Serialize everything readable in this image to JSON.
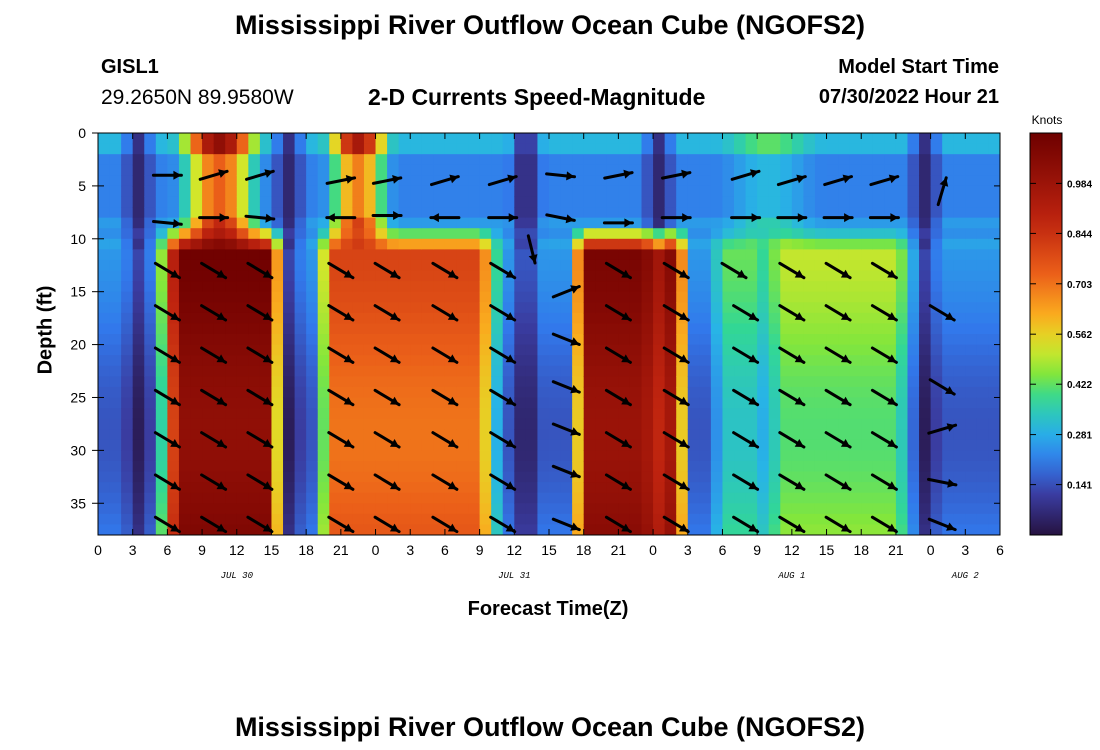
{
  "page": {
    "title": "Mississippi River Outflow Ocean Cube (NGOFS2)",
    "title_bottom": "Mississippi River Outflow Ocean Cube (NGOFS2)",
    "station": "GISL1",
    "coordinates": "29.2650N  89.9580W",
    "subtitle": "2-D Currents Speed-Magnitude",
    "model_start_label": "Model Start Time",
    "model_start_value": "07/30/2022 Hour 21"
  },
  "chart_data": {
    "type": "heatmap",
    "title": "2-D Currents Speed-Magnitude",
    "xlabel": "Forecast Time(Z)",
    "ylabel": "Depth (ft)",
    "xlim": [
      0,
      78
    ],
    "ylim": [
      0,
      38
    ],
    "y_inverted": true,
    "x_tick_hours": [
      0,
      3,
      6,
      9,
      12,
      15,
      18,
      21,
      24,
      27,
      30,
      33,
      36,
      39,
      42,
      45,
      48,
      51,
      54,
      57,
      60,
      63,
      66,
      69,
      72,
      75,
      78
    ],
    "x_tick_labels": [
      "0",
      "3",
      "6",
      "9",
      "12",
      "15",
      "18",
      "21",
      "0",
      "3",
      "6",
      "9",
      "12",
      "15",
      "18",
      "21",
      "0",
      "3",
      "6",
      "9",
      "12",
      "15",
      "18",
      "21",
      "0",
      "3",
      "6"
    ],
    "y_ticks": [
      0,
      5,
      10,
      15,
      20,
      25,
      30,
      35
    ],
    "y_tick_labels": [
      "0",
      "5",
      "10",
      "15",
      "20",
      "25",
      "30",
      "35"
    ],
    "date_labels": [
      {
        "hour": 12,
        "label": "JUL 30"
      },
      {
        "hour": 36,
        "label": "JUL 31"
      },
      {
        "hour": 60,
        "label": "AUG 1"
      },
      {
        "hour": 75,
        "label": "AUG 2"
      }
    ],
    "colorbar": {
      "unit": "Knots",
      "min": 0,
      "max": 1.125,
      "ticks": [
        0.141,
        0.281,
        0.422,
        0.562,
        0.703,
        0.844,
        0.984
      ],
      "tick_labels": [
        "0.141",
        "0.281",
        "0.422",
        "0.562",
        "0.703",
        "0.844",
        "0.984"
      ]
    },
    "speed_model": {
      "surface_layer_depth_ft": 10,
      "surface_peaks": [
        {
          "center_hour": 10.5,
          "halfwidth_hours": 4.5,
          "value": 1.02
        },
        {
          "center_hour": 22.5,
          "halfwidth_hours": 3.5,
          "value": 0.95
        },
        {
          "center_hour": 58,
          "halfwidth_hours": 5,
          "value": 0.42
        }
      ],
      "surface_troughs_hours": [
        3.5,
        16.5,
        37,
        48.5,
        71.5
      ],
      "subsurface_bands": [
        {
          "start_hour": 6,
          "end_hour": 15.5,
          "value": 1.07
        },
        {
          "start_hour": 19.5,
          "end_hour": 34,
          "value": 0.75
        },
        {
          "start_hour": 41.5,
          "end_hour": 50.5,
          "value": 1.04
        },
        {
          "start_hour": 53.5,
          "end_hour": 58,
          "value": 0.38
        },
        {
          "start_hour": 58,
          "end_hour": 70,
          "value": 0.46
        }
      ],
      "background": 0.2
    },
    "vectors": [
      {
        "hour": 6,
        "depth": 4,
        "u": 1,
        "v": 0
      },
      {
        "hour": 10,
        "depth": 4,
        "u": 1,
        "v": 0.3
      },
      {
        "hour": 14,
        "depth": 4,
        "u": 1,
        "v": 0.3
      },
      {
        "hour": 21,
        "depth": 4.5,
        "u": 1,
        "v": 0.2
      },
      {
        "hour": 25,
        "depth": 4.5,
        "u": 1,
        "v": 0.2
      },
      {
        "hour": 30,
        "depth": 4.5,
        "u": 1,
        "v": 0.3
      },
      {
        "hour": 35,
        "depth": 4.5,
        "u": 1,
        "v": 0.3
      },
      {
        "hour": 40,
        "depth": 4,
        "u": 1,
        "v": -0.1
      },
      {
        "hour": 45,
        "depth": 4,
        "u": 1,
        "v": 0.2
      },
      {
        "hour": 50,
        "depth": 4,
        "u": 1,
        "v": 0.2
      },
      {
        "hour": 56,
        "depth": 4,
        "u": 1,
        "v": 0.3
      },
      {
        "hour": 60,
        "depth": 4.5,
        "u": 1,
        "v": 0.3
      },
      {
        "hour": 64,
        "depth": 4.5,
        "u": 1,
        "v": 0.3
      },
      {
        "hour": 68,
        "depth": 4.5,
        "u": 1,
        "v": 0.3
      },
      {
        "hour": 73,
        "depth": 5.5,
        "u": 0.3,
        "v": 1
      },
      {
        "hour": 6,
        "depth": 8.5,
        "u": 1,
        "v": -0.1
      },
      {
        "hour": 10,
        "depth": 8,
        "u": 1,
        "v": 0
      },
      {
        "hour": 14,
        "depth": 8,
        "u": 1,
        "v": -0.1
      },
      {
        "hour": 21,
        "depth": 8,
        "u": -1,
        "v": 0
      },
      {
        "hour": 25,
        "depth": 7.8,
        "u": 1,
        "v": 0
      },
      {
        "hour": 30,
        "depth": 8,
        "u": -1,
        "v": 0
      },
      {
        "hour": 35,
        "depth": 8,
        "u": 1,
        "v": 0
      },
      {
        "hour": 40,
        "depth": 8,
        "u": 1,
        "v": -0.2
      },
      {
        "hour": 45,
        "depth": 8.5,
        "u": 1,
        "v": 0
      },
      {
        "hour": 50,
        "depth": 8,
        "u": 1,
        "v": 0
      },
      {
        "hour": 56,
        "depth": 8,
        "u": 1,
        "v": 0
      },
      {
        "hour": 60,
        "depth": 8,
        "u": 1,
        "v": 0
      },
      {
        "hour": 64,
        "depth": 8,
        "u": 1,
        "v": 0
      },
      {
        "hour": 68,
        "depth": 8,
        "u": 1,
        "v": 0
      },
      {
        "hour": 37.5,
        "depth": 11,
        "u": 0.25,
        "v": -1
      },
      {
        "hour": 40.5,
        "depth": 15,
        "u": 1,
        "v": 0.4
      },
      {
        "hour": 6,
        "depth": 13,
        "u": 1,
        "v": -0.6
      },
      {
        "hour": 10,
        "depth": 13,
        "u": 1,
        "v": -0.6
      },
      {
        "hour": 14,
        "depth": 13,
        "u": 1,
        "v": -0.6
      },
      {
        "hour": 21,
        "depth": 13,
        "u": 1,
        "v": -0.6
      },
      {
        "hour": 25,
        "depth": 13,
        "u": 1,
        "v": -0.6
      },
      {
        "hour": 30,
        "depth": 13,
        "u": 1,
        "v": -0.6
      },
      {
        "hour": 35,
        "depth": 13,
        "u": 1,
        "v": -0.6
      },
      {
        "hour": 45,
        "depth": 13,
        "u": 1,
        "v": -0.6
      },
      {
        "hour": 50,
        "depth": 13,
        "u": 1,
        "v": -0.6
      },
      {
        "hour": 55,
        "depth": 13,
        "u": 1,
        "v": -0.6
      },
      {
        "hour": 60,
        "depth": 13,
        "u": 1,
        "v": -0.6
      },
      {
        "hour": 64,
        "depth": 13,
        "u": 1,
        "v": -0.6
      },
      {
        "hour": 68,
        "depth": 13,
        "u": 1,
        "v": -0.6
      },
      {
        "hour": 6,
        "depth": 17,
        "u": 1,
        "v": -0.6
      },
      {
        "hour": 10,
        "depth": 17,
        "u": 1,
        "v": -0.6
      },
      {
        "hour": 14,
        "depth": 17,
        "u": 1,
        "v": -0.6
      },
      {
        "hour": 21,
        "depth": 17,
        "u": 1,
        "v": -0.6
      },
      {
        "hour": 25,
        "depth": 17,
        "u": 1,
        "v": -0.6
      },
      {
        "hour": 30,
        "depth": 17,
        "u": 1,
        "v": -0.6
      },
      {
        "hour": 35,
        "depth": 17,
        "u": 1,
        "v": -0.6
      },
      {
        "hour": 45,
        "depth": 17,
        "u": 1,
        "v": -0.6
      },
      {
        "hour": 50,
        "depth": 17,
        "u": 1,
        "v": -0.6
      },
      {
        "hour": 56,
        "depth": 17,
        "u": 1,
        "v": -0.6
      },
      {
        "hour": 60,
        "depth": 17,
        "u": 1,
        "v": -0.6
      },
      {
        "hour": 64,
        "depth": 17,
        "u": 1,
        "v": -0.6
      },
      {
        "hour": 68,
        "depth": 17,
        "u": 1,
        "v": -0.6
      },
      {
        "hour": 73,
        "depth": 17,
        "u": 1,
        "v": -0.6
      },
      {
        "hour": 6,
        "depth": 21,
        "u": 1,
        "v": -0.6
      },
      {
        "hour": 10,
        "depth": 21,
        "u": 1,
        "v": -0.6
      },
      {
        "hour": 14,
        "depth": 21,
        "u": 1,
        "v": -0.6
      },
      {
        "hour": 21,
        "depth": 21,
        "u": 1,
        "v": -0.6
      },
      {
        "hour": 25,
        "depth": 21,
        "u": 1,
        "v": -0.6
      },
      {
        "hour": 30,
        "depth": 21,
        "u": 1,
        "v": -0.6
      },
      {
        "hour": 35,
        "depth": 21,
        "u": 1,
        "v": -0.6
      },
      {
        "hour": 45,
        "depth": 21,
        "u": 1,
        "v": -0.6
      },
      {
        "hour": 50,
        "depth": 21,
        "u": 1,
        "v": -0.6
      },
      {
        "hour": 56,
        "depth": 21,
        "u": 1,
        "v": -0.6
      },
      {
        "hour": 60,
        "depth": 21,
        "u": 1,
        "v": -0.6
      },
      {
        "hour": 64,
        "depth": 21,
        "u": 1,
        "v": -0.6
      },
      {
        "hour": 68,
        "depth": 21,
        "u": 1,
        "v": -0.6
      },
      {
        "hour": 73,
        "depth": 24,
        "u": 1,
        "v": -0.6
      },
      {
        "hour": 40.5,
        "depth": 19.5,
        "u": 1,
        "v": -0.4
      },
      {
        "hour": 6,
        "depth": 25,
        "u": 1,
        "v": -0.6
      },
      {
        "hour": 10,
        "depth": 25,
        "u": 1,
        "v": -0.6
      },
      {
        "hour": 14,
        "depth": 25,
        "u": 1,
        "v": -0.6
      },
      {
        "hour": 21,
        "depth": 25,
        "u": 1,
        "v": -0.6
      },
      {
        "hour": 25,
        "depth": 25,
        "u": 1,
        "v": -0.6
      },
      {
        "hour": 30,
        "depth": 25,
        "u": 1,
        "v": -0.6
      },
      {
        "hour": 35,
        "depth": 25,
        "u": 1,
        "v": -0.6
      },
      {
        "hour": 40.5,
        "depth": 24,
        "u": 1,
        "v": -0.4
      },
      {
        "hour": 45,
        "depth": 25,
        "u": 1,
        "v": -0.6
      },
      {
        "hour": 50,
        "depth": 25,
        "u": 1,
        "v": -0.6
      },
      {
        "hour": 56,
        "depth": 25,
        "u": 1,
        "v": -0.6
      },
      {
        "hour": 60,
        "depth": 25,
        "u": 1,
        "v": -0.6
      },
      {
        "hour": 64,
        "depth": 25,
        "u": 1,
        "v": -0.6
      },
      {
        "hour": 68,
        "depth": 25,
        "u": 1,
        "v": -0.6
      },
      {
        "hour": 73,
        "depth": 28,
        "u": 1,
        "v": 0.3
      },
      {
        "hour": 6,
        "depth": 29,
        "u": 1,
        "v": -0.6
      },
      {
        "hour": 10,
        "depth": 29,
        "u": 1,
        "v": -0.6
      },
      {
        "hour": 14,
        "depth": 29,
        "u": 1,
        "v": -0.6
      },
      {
        "hour": 21,
        "depth": 29,
        "u": 1,
        "v": -0.6
      },
      {
        "hour": 25,
        "depth": 29,
        "u": 1,
        "v": -0.6
      },
      {
        "hour": 30,
        "depth": 29,
        "u": 1,
        "v": -0.6
      },
      {
        "hour": 35,
        "depth": 29,
        "u": 1,
        "v": -0.6
      },
      {
        "hour": 40.5,
        "depth": 28,
        "u": 1,
        "v": -0.4
      },
      {
        "hour": 45,
        "depth": 29,
        "u": 1,
        "v": -0.6
      },
      {
        "hour": 50,
        "depth": 29,
        "u": 1,
        "v": -0.6
      },
      {
        "hour": 56,
        "depth": 29,
        "u": 1,
        "v": -0.6
      },
      {
        "hour": 60,
        "depth": 29,
        "u": 1,
        "v": -0.6
      },
      {
        "hour": 64,
        "depth": 29,
        "u": 1,
        "v": -0.6
      },
      {
        "hour": 68,
        "depth": 29,
        "u": 1,
        "v": -0.6
      },
      {
        "hour": 6,
        "depth": 33,
        "u": 1,
        "v": -0.6
      },
      {
        "hour": 10,
        "depth": 33,
        "u": 1,
        "v": -0.6
      },
      {
        "hour": 14,
        "depth": 33,
        "u": 1,
        "v": -0.6
      },
      {
        "hour": 21,
        "depth": 33,
        "u": 1,
        "v": -0.6
      },
      {
        "hour": 25,
        "depth": 33,
        "u": 1,
        "v": -0.6
      },
      {
        "hour": 30,
        "depth": 33,
        "u": 1,
        "v": -0.6
      },
      {
        "hour": 35,
        "depth": 33,
        "u": 1,
        "v": -0.6
      },
      {
        "hour": 40.5,
        "depth": 32,
        "u": 1,
        "v": -0.4
      },
      {
        "hour": 45,
        "depth": 33,
        "u": 1,
        "v": -0.6
      },
      {
        "hour": 50,
        "depth": 33,
        "u": 1,
        "v": -0.6
      },
      {
        "hour": 56,
        "depth": 33,
        "u": 1,
        "v": -0.6
      },
      {
        "hour": 60,
        "depth": 33,
        "u": 1,
        "v": -0.6
      },
      {
        "hour": 64,
        "depth": 33,
        "u": 1,
        "v": -0.6
      },
      {
        "hour": 68,
        "depth": 33,
        "u": 1,
        "v": -0.6
      },
      {
        "hour": 73,
        "depth": 33,
        "u": 1,
        "v": -0.2
      },
      {
        "hour": 6,
        "depth": 37,
        "u": 1,
        "v": -0.6
      },
      {
        "hour": 10,
        "depth": 37,
        "u": 1,
        "v": -0.6
      },
      {
        "hour": 14,
        "depth": 37,
        "u": 1,
        "v": -0.6
      },
      {
        "hour": 21,
        "depth": 37,
        "u": 1,
        "v": -0.6
      },
      {
        "hour": 25,
        "depth": 37,
        "u": 1,
        "v": -0.6
      },
      {
        "hour": 30,
        "depth": 37,
        "u": 1,
        "v": -0.6
      },
      {
        "hour": 35,
        "depth": 37,
        "u": 1,
        "v": -0.6
      },
      {
        "hour": 40.5,
        "depth": 37,
        "u": 1,
        "v": -0.4
      },
      {
        "hour": 45,
        "depth": 37,
        "u": 1,
        "v": -0.6
      },
      {
        "hour": 50,
        "depth": 37,
        "u": 1,
        "v": -0.6
      },
      {
        "hour": 56,
        "depth": 37,
        "u": 1,
        "v": -0.6
      },
      {
        "hour": 60,
        "depth": 37,
        "u": 1,
        "v": -0.6
      },
      {
        "hour": 64,
        "depth": 37,
        "u": 1,
        "v": -0.6
      },
      {
        "hour": 68,
        "depth": 37,
        "u": 1,
        "v": -0.6
      },
      {
        "hour": 73,
        "depth": 37,
        "u": 1,
        "v": -0.4
      }
    ]
  }
}
